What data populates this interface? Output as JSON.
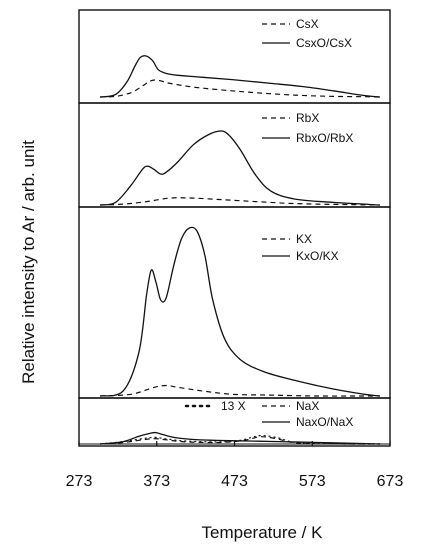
{
  "chart_data": {
    "type": "line",
    "xlabel": "Temperature / K",
    "ylabel": "Relative intensity to Ar / arb. unit",
    "xlim": [
      273,
      673
    ],
    "xticks": [
      273,
      373,
      473,
      573,
      673
    ],
    "ylim": [
      0,
      1
    ],
    "grid": false,
    "panels": [
      {
        "name": "Cs",
        "series": [
          {
            "name": "CsX",
            "style": "dashed",
            "x": [
              300,
              320,
              340,
              355,
              365,
              375,
              390,
              420,
              460,
              500,
              550,
              600,
              640,
              660
            ],
            "y": [
              0,
              0.01,
              0.07,
              0.18,
              0.26,
              0.27,
              0.22,
              0.16,
              0.11,
              0.07,
              0.03,
              0.01,
              0.005,
              0
            ]
          },
          {
            "name": "CsxO/CsX",
            "style": "solid",
            "x": [
              300,
              320,
              335,
              345,
              352,
              360,
              368,
              375,
              385,
              400,
              430,
              470,
              520,
              560,
              600,
              630,
              650,
              660
            ],
            "y": [
              0,
              0.04,
              0.25,
              0.5,
              0.64,
              0.66,
              0.58,
              0.44,
              0.38,
              0.35,
              0.32,
              0.28,
              0.22,
              0.17,
              0.1,
              0.04,
              0.01,
              0
            ]
          }
        ]
      },
      {
        "name": "Rb",
        "series": [
          {
            "name": "RbX",
            "style": "dashed",
            "x": [
              300,
              330,
              360,
              390,
              420,
              460,
              500,
              540,
              580,
              620,
              660
            ],
            "y": [
              0,
              0.01,
              0.04,
              0.08,
              0.08,
              0.06,
              0.04,
              0.02,
              0.01,
              0.005,
              0
            ]
          },
          {
            "name": "RbxO/RbX",
            "style": "solid",
            "x": [
              300,
              320,
              340,
              355,
              362,
              370,
              378,
              385,
              400,
              420,
              440,
              455,
              465,
              480,
              500,
              520,
              550,
              600,
              640,
              660
            ],
            "y": [
              0,
              0.03,
              0.23,
              0.42,
              0.45,
              0.41,
              0.36,
              0.38,
              0.5,
              0.7,
              0.82,
              0.86,
              0.82,
              0.65,
              0.35,
              0.16,
              0.07,
              0.03,
              0.01,
              0
            ]
          }
        ]
      },
      {
        "name": "K",
        "series": [
          {
            "name": "KX",
            "style": "dashed",
            "x": [
              300,
              340,
              370,
              385,
              400,
              430,
              470,
              520,
              580,
              640,
              660
            ],
            "y": [
              0,
              0.01,
              0.05,
              0.06,
              0.05,
              0.03,
              0.01,
              0.005,
              0,
              0,
              0
            ]
          },
          {
            "name": "KxO/KX",
            "style": "solid",
            "x": [
              300,
              330,
              350,
              360,
              366,
              372,
              378,
              385,
              395,
              405,
              415,
              425,
              435,
              445,
              460,
              480,
              510,
              550,
              600,
              640,
              660
            ],
            "y": [
              0,
              0.03,
              0.25,
              0.58,
              0.72,
              0.65,
              0.55,
              0.56,
              0.75,
              0.9,
              0.96,
              0.94,
              0.8,
              0.55,
              0.33,
              0.21,
              0.14,
              0.09,
              0.04,
              0.01,
              0
            ]
          }
        ]
      },
      {
        "name": "Na",
        "series": [
          {
            "name": "13 X",
            "style": "dotted",
            "x": [
              300,
              330,
              355,
              370,
              385,
              410,
              450,
              480,
              495,
              505,
              515,
              530,
              545,
              570,
              620,
              660
            ],
            "y": [
              0,
              0.08,
              0.18,
              0.22,
              0.17,
              0.1,
              0.07,
              0.12,
              0.22,
              0.28,
              0.27,
              0.2,
              0.08,
              0.02,
              0,
              0
            ]
          },
          {
            "name": "NaX",
            "style": "dashed",
            "x": [
              300,
              330,
              355,
              370,
              385,
              410,
              450,
              480,
              495,
              505,
              515,
              530,
              545,
              570,
              620,
              660
            ],
            "y": [
              0,
              0.05,
              0.14,
              0.18,
              0.14,
              0.07,
              0.05,
              0.1,
              0.18,
              0.24,
              0.23,
              0.16,
              0.06,
              0.01,
              0,
              0
            ]
          },
          {
            "name": "NaxO/NaX",
            "style": "solid",
            "x": [
              300,
              330,
              350,
              365,
              372,
              380,
              395,
              420,
              450,
              490,
              530,
              580,
              630,
              660
            ],
            "y": [
              0,
              0.08,
              0.26,
              0.36,
              0.38,
              0.32,
              0.22,
              0.15,
              0.12,
              0.1,
              0.08,
              0.05,
              0.02,
              0
            ]
          }
        ]
      }
    ]
  }
}
